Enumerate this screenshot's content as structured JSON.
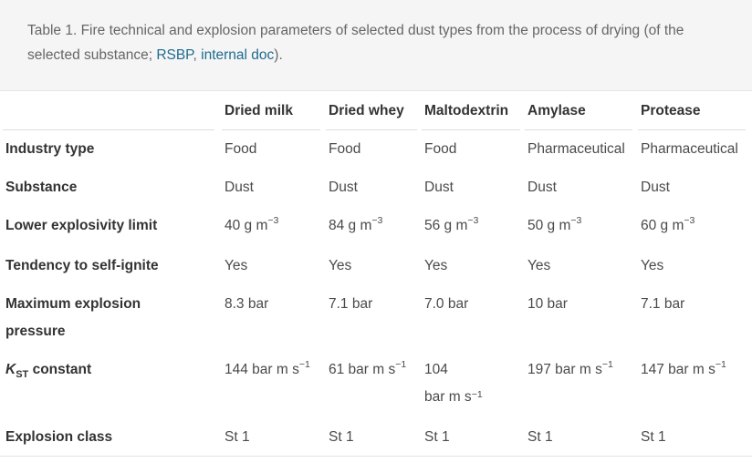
{
  "caption": {
    "prefix": "Table 1. Fire technical and explosion parameters of selected dust types from the process of drying (of the selected substance; ",
    "link1": "RSBP",
    "comma": ", ",
    "link2": "internal doc",
    "suffix": ")."
  },
  "table": {
    "columns": [
      "Dried milk",
      "Dried whey",
      "Maltodextrin",
      "Amylase",
      "Protease"
    ],
    "rows": [
      {
        "label": "Industry type",
        "values": [
          "Food",
          "Food",
          "Food",
          "Pharmaceutical",
          "Pharmaceutical"
        ]
      },
      {
        "label": "Substance",
        "values": [
          "Dust",
          "Dust",
          "Dust",
          "Dust",
          "Dust"
        ]
      },
      {
        "label": "Lower explosivity limit",
        "values": [
          "40 g m",
          "84 g m",
          "56 g m",
          "50 g m",
          "60 g m"
        ],
        "exponent": "−3"
      },
      {
        "label": "Tendency to self-ignite",
        "values": [
          "Yes",
          "Yes",
          "Yes",
          "Yes",
          "Yes"
        ]
      },
      {
        "label_line1": "Maximum explosion",
        "label_line2": "pressure",
        "values": [
          "8.3 bar",
          "7.1 bar",
          "7.0 bar",
          "10 bar",
          "7.1 bar"
        ]
      },
      {
        "label_main": "K",
        "label_sub": "ST",
        "label_rest": " constant",
        "values": [
          "144 bar m s",
          "61 bar m s",
          "104",
          "197 bar m s",
          "147 bar m s"
        ],
        "wrap_line2": "bar m s",
        "exponent": "−1"
      },
      {
        "label": "Explosion class",
        "values": [
          "St 1",
          "St 1",
          "St 1",
          "St 1",
          "St 1"
        ]
      }
    ]
  }
}
